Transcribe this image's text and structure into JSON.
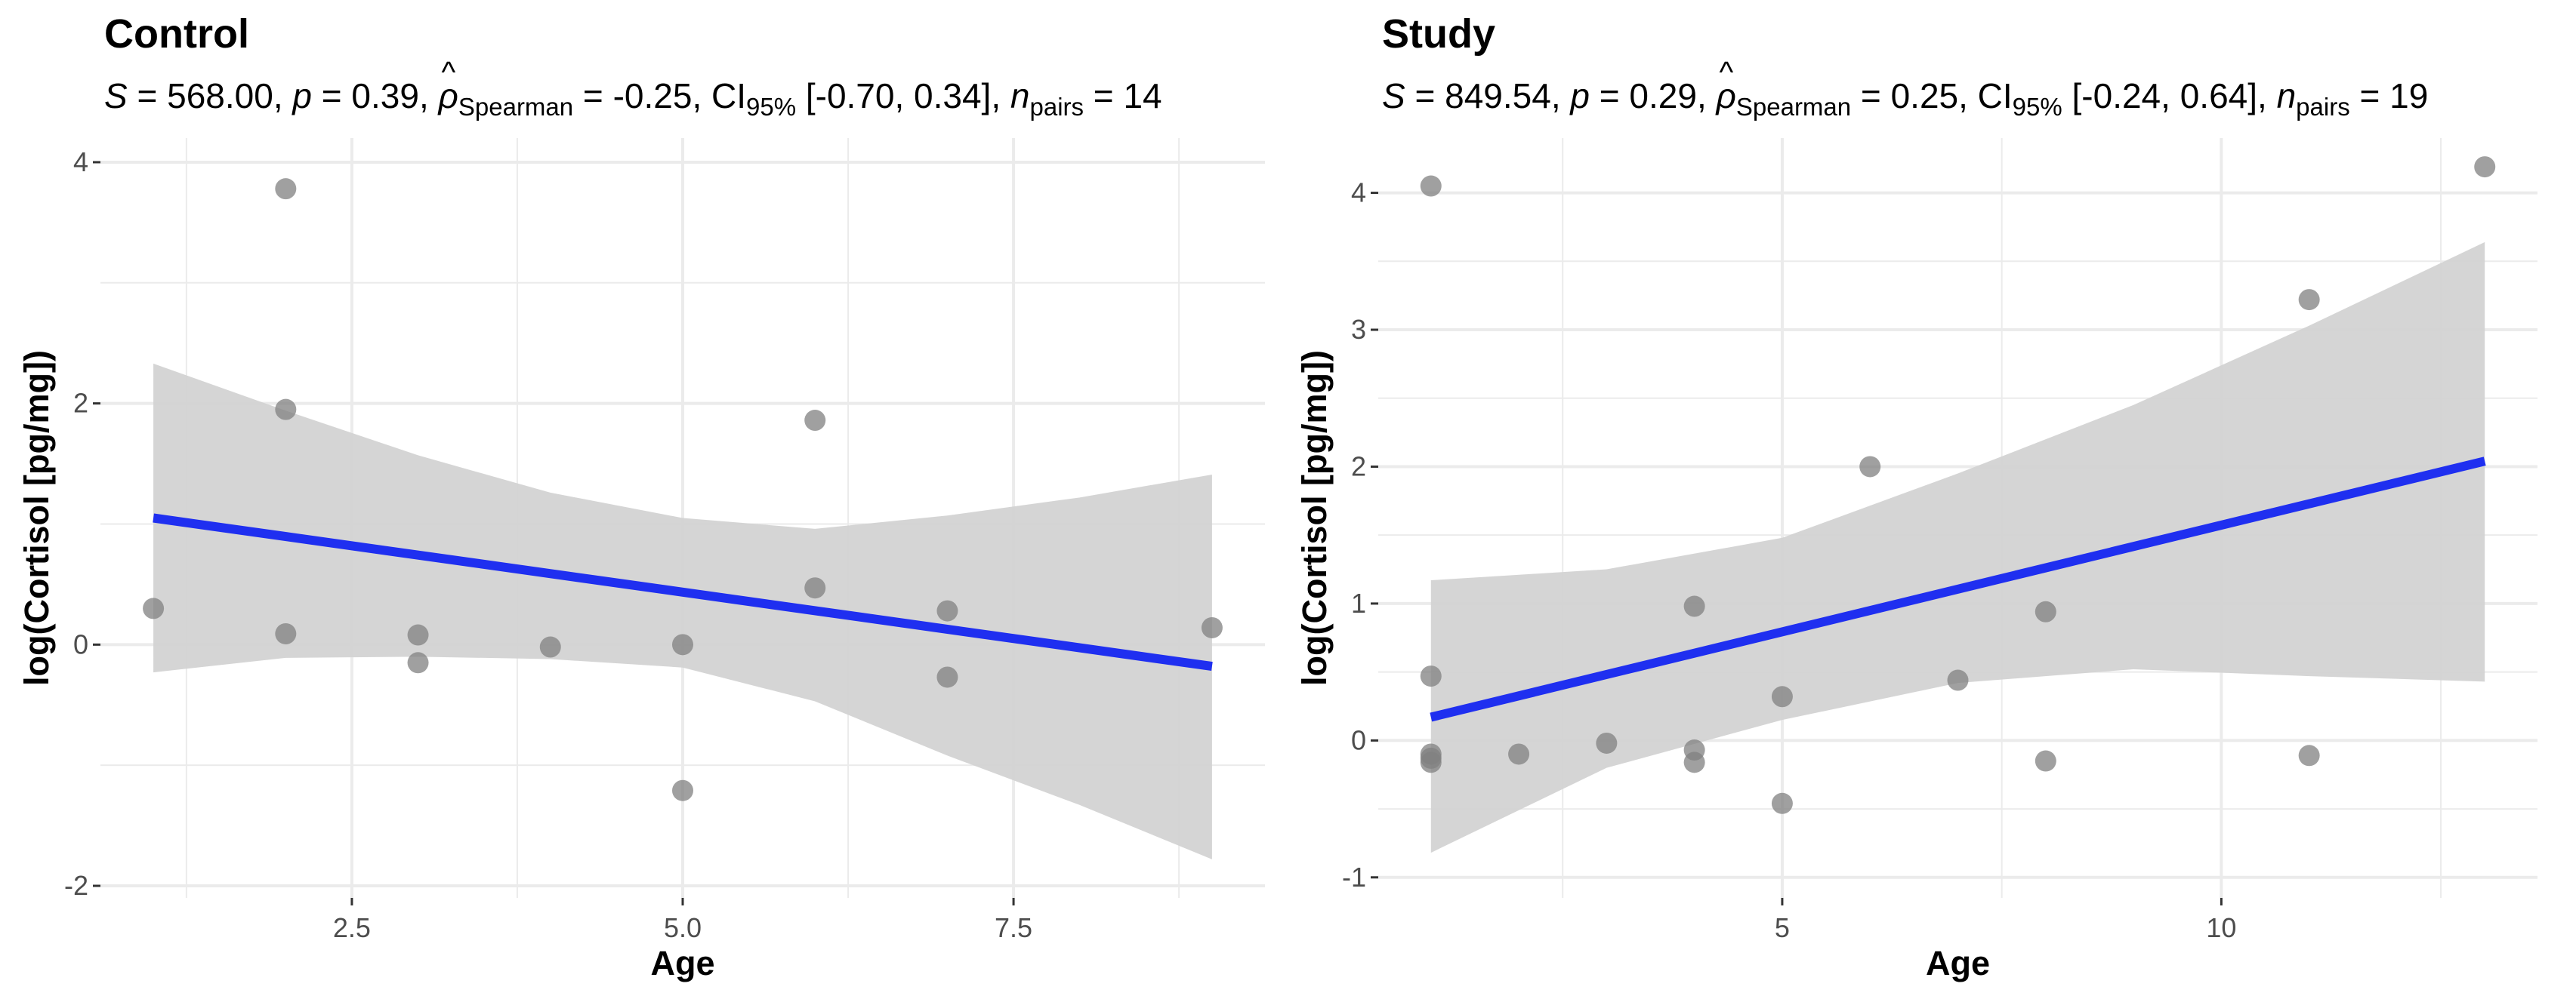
{
  "chart_data": [
    {
      "type": "scatter",
      "title": "Control",
      "subtitle": {
        "S_label": "S",
        "S_value": "568.00",
        "p_label": "p",
        "p_value": "0.39",
        "rho_label": "ρ",
        "rho_sub": "Spearman",
        "rho_value": "-0.25",
        "ci_label": "CI",
        "ci_sub": "95%",
        "ci_value": "[-0.70, 0.34]",
        "n_label": "n",
        "n_sub": "pairs",
        "n_value": "14"
      },
      "xlabel": "Age",
      "ylabel": "log(Cortisol [pg/mg])",
      "xlim": [
        0.6,
        9.4
      ],
      "ylim": [
        -2.1,
        4.2
      ],
      "xticks": [
        2.5,
        5.0,
        7.5
      ],
      "xtick_labels": [
        "2.5",
        "5.0",
        "7.5"
      ],
      "yticks": [
        -2,
        0,
        2,
        4
      ],
      "ytick_labels": [
        "-2",
        "0",
        "2",
        "4"
      ],
      "points": [
        {
          "x": 1,
          "y": 0.3
        },
        {
          "x": 2,
          "y": 3.78
        },
        {
          "x": 2,
          "y": 1.95
        },
        {
          "x": 2,
          "y": 0.09
        },
        {
          "x": 3,
          "y": 0.08
        },
        {
          "x": 3,
          "y": -0.15
        },
        {
          "x": 4,
          "y": -0.02
        },
        {
          "x": 5,
          "y": 0.0
        },
        {
          "x": 5,
          "y": -1.21
        },
        {
          "x": 6,
          "y": 1.86
        },
        {
          "x": 6,
          "y": 0.47
        },
        {
          "x": 7,
          "y": 0.28
        },
        {
          "x": 7,
          "y": -0.27
        },
        {
          "x": 9,
          "y": 0.14
        }
      ],
      "fit": {
        "x": [
          1,
          9
        ],
        "y": [
          1.05,
          -0.18
        ]
      },
      "ci_band": {
        "x": [
          1,
          2,
          3,
          4,
          5,
          6,
          7,
          8,
          9
        ],
        "upper": [
          2.33,
          1.94,
          1.57,
          1.26,
          1.05,
          0.96,
          1.07,
          1.22,
          1.41
        ],
        "lower": [
          -0.23,
          -0.11,
          -0.1,
          -0.12,
          -0.19,
          -0.47,
          -0.92,
          -1.33,
          -1.78
        ]
      },
      "colors": {
        "points": "#808080",
        "fit": "#1f2ff0",
        "band": "#d3d3d3",
        "grid": "#ebebeb"
      }
    },
    {
      "type": "scatter",
      "title": "Study",
      "subtitle": {
        "S_label": "S",
        "S_value": "849.54",
        "p_label": "p",
        "p_value": "0.29",
        "rho_label": "ρ",
        "rho_sub": "Spearman",
        "rho_value": "0.25",
        "ci_label": "CI",
        "ci_sub": "95%",
        "ci_value": "[-0.24, 0.64]",
        "n_label": "n",
        "n_sub": "pairs",
        "n_value": "19"
      },
      "xlabel": "Age",
      "ylabel": "log(Cortisol [pg/mg])",
      "xlim": [
        0.4,
        13.6
      ],
      "ylim": [
        -1.15,
        4.4
      ],
      "xticks": [
        5,
        10
      ],
      "xtick_labels": [
        "5",
        "10"
      ],
      "yticks": [
        -1,
        0,
        1,
        2,
        3,
        4
      ],
      "ytick_labels": [
        "-1",
        "0",
        "1",
        "2",
        "3",
        "4"
      ],
      "points": [
        {
          "x": 1,
          "y": 4.05
        },
        {
          "x": 1,
          "y": 0.47
        },
        {
          "x": 1,
          "y": -0.1
        },
        {
          "x": 1,
          "y": -0.13
        },
        {
          "x": 1,
          "y": -0.16
        },
        {
          "x": 2,
          "y": -0.1
        },
        {
          "x": 3,
          "y": -0.02
        },
        {
          "x": 4,
          "y": 0.98
        },
        {
          "x": 4,
          "y": -0.07
        },
        {
          "x": 4,
          "y": -0.16
        },
        {
          "x": 5,
          "y": 0.32
        },
        {
          "x": 5,
          "y": -0.46
        },
        {
          "x": 6,
          "y": 2.0
        },
        {
          "x": 7,
          "y": 0.44
        },
        {
          "x": 8,
          "y": 0.94
        },
        {
          "x": 8,
          "y": -0.15
        },
        {
          "x": 11,
          "y": 3.22
        },
        {
          "x": 11,
          "y": -0.11
        },
        {
          "x": 13,
          "y": 4.19
        }
      ],
      "fit": {
        "x": [
          1,
          13
        ],
        "y": [
          0.17,
          2.04
        ]
      },
      "ci_band": {
        "x": [
          1,
          3,
          5,
          7,
          9,
          11,
          13
        ],
        "upper": [
          1.17,
          1.25,
          1.48,
          1.95,
          2.45,
          3.03,
          3.64
        ],
        "lower": [
          -0.82,
          -0.2,
          0.15,
          0.42,
          0.52,
          0.47,
          0.43
        ]
      },
      "colors": {
        "points": "#808080",
        "fit": "#1f2ff0",
        "band": "#d3d3d3",
        "grid": "#ebebeb"
      }
    }
  ]
}
